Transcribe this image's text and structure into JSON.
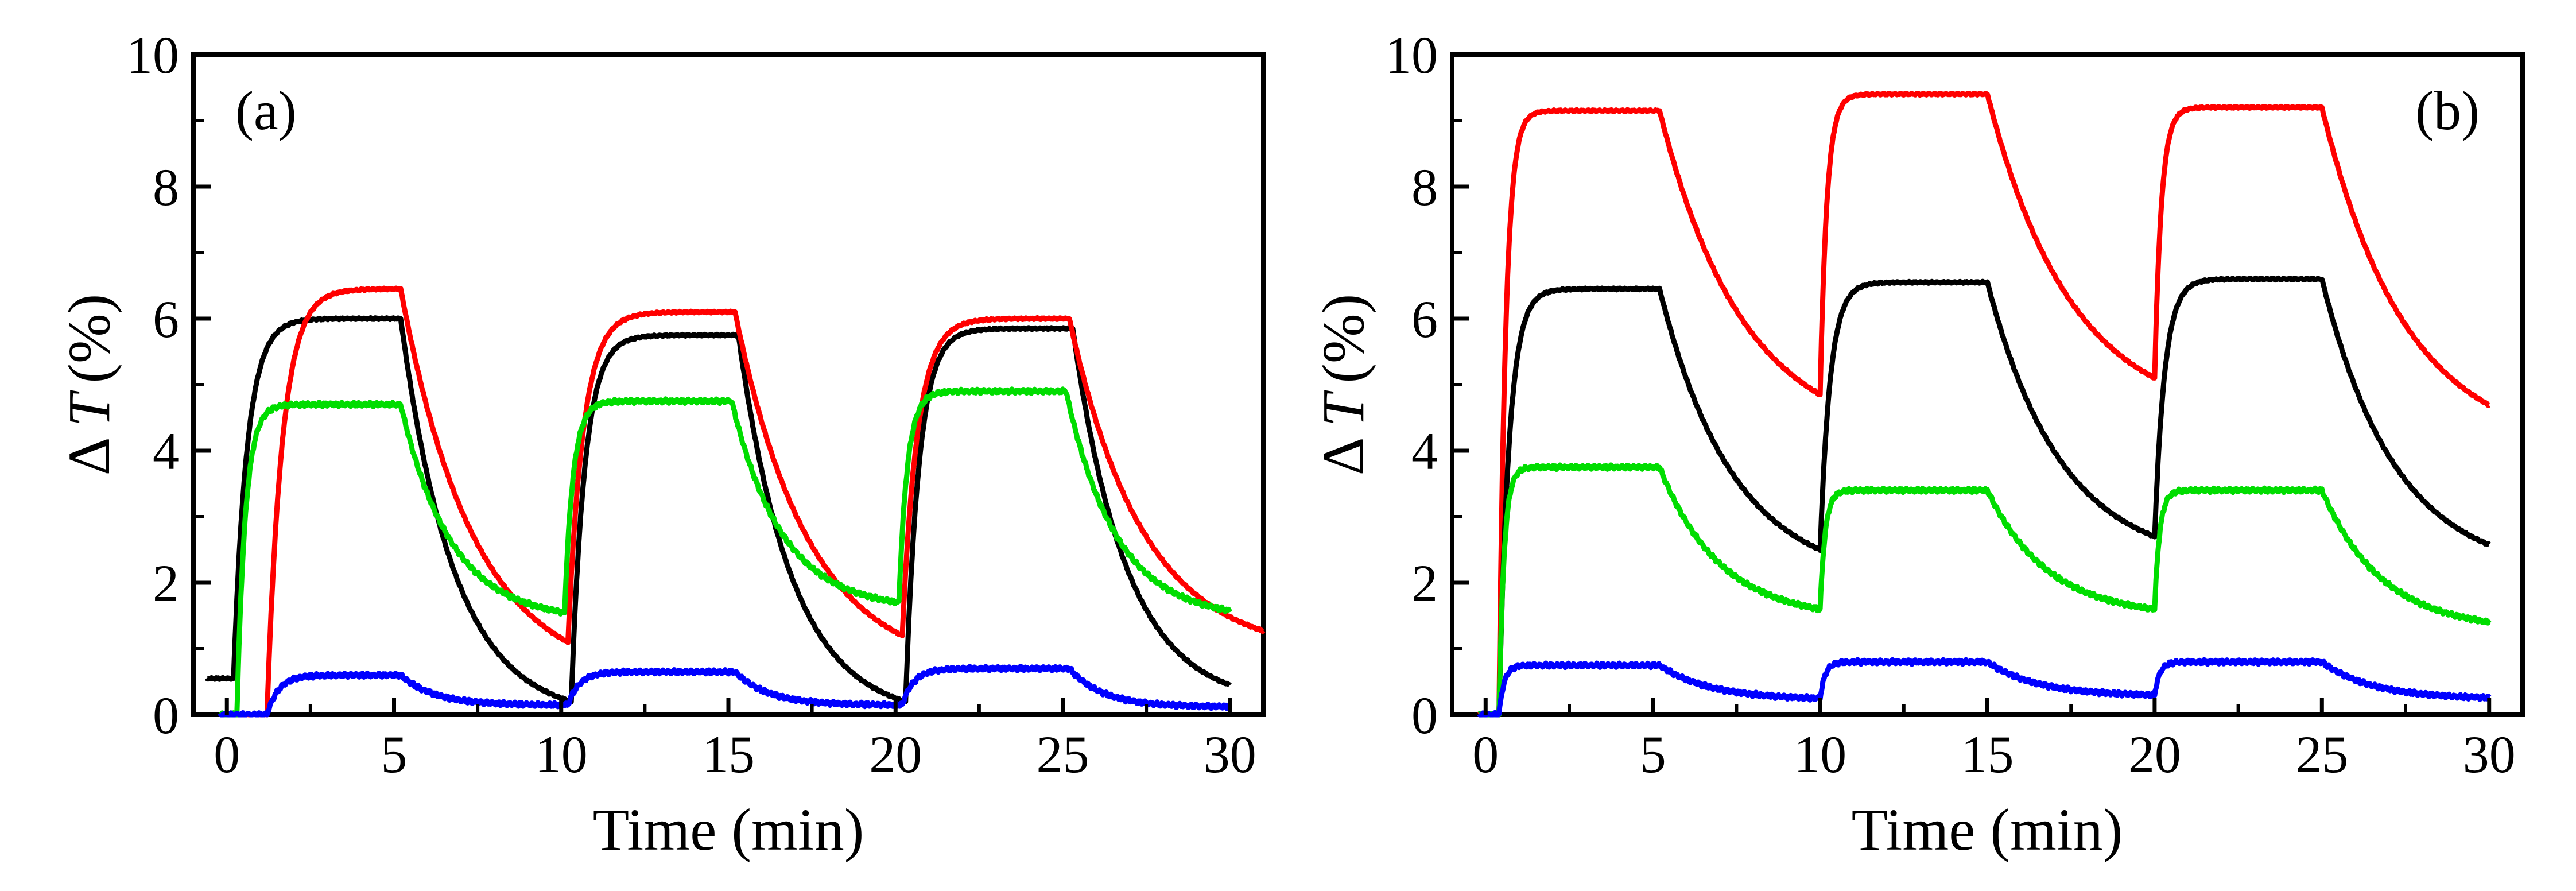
{
  "chart_data": [
    {
      "type": "line",
      "panel_label": "(a)",
      "xlabel": "Time (min)",
      "ylabel_prefix": "Δ",
      "ylabel_var": "T",
      "ylabel_unit": "(%)",
      "xlim": [
        -1,
        31
      ],
      "ylim": [
        0,
        10
      ],
      "xticks": [
        0,
        5,
        10,
        15,
        20,
        25,
        30
      ],
      "yticks": [
        0,
        2,
        4,
        6,
        8,
        10
      ],
      "series": [
        {
          "name": "black",
          "color": "#000000",
          "type": "step",
          "t_on": [
            0.2,
            10.3,
            20.3
          ],
          "levels": [
            6.0,
            5.75,
            5.85
          ],
          "bases": [
            0.55,
            0.2,
            0.2
          ],
          "tau_rise": 0.4,
          "tau_fall": 1.6,
          "t_end": 30.0
        },
        {
          "name": "red",
          "color": "#ff0000",
          "type": "step",
          "t_on": [
            1.2,
            10.2,
            20.2
          ],
          "levels": [
            6.45,
            6.1,
            6.0
          ],
          "bases": [
            0.0,
            1.1,
            1.2
          ],
          "tau_rise": 0.45,
          "tau_fall": 2.2,
          "t_end": 31.0
        },
        {
          "name": "green",
          "color": "#00dd00",
          "type": "step",
          "t_on": [
            0.3,
            10.1,
            20.1
          ],
          "levels": [
            4.7,
            4.75,
            4.9
          ],
          "bases": [
            0.0,
            1.55,
            1.7
          ],
          "tau_rise": 0.25,
          "tau_fall": 1.5,
          "floor": 1.45,
          "t_end": 30.0
        },
        {
          "name": "blue",
          "color": "#0000ff",
          "type": "step",
          "t_on": [
            1.2,
            10.2,
            20.2
          ],
          "levels": [
            0.6,
            0.65,
            0.7
          ],
          "bases": [
            0.0,
            0.15,
            0.15
          ],
          "tau_rise": 0.35,
          "tau_fall": 1.0,
          "t_end": 30.0
        }
      ]
    },
    {
      "type": "line",
      "panel_label": "(b)",
      "xlabel": "Time (min)",
      "ylabel_prefix": "Δ",
      "ylabel_var": "T",
      "ylabel_unit": "(%)",
      "xlim": [
        -1,
        31
      ],
      "ylim": [
        0,
        10
      ],
      "xticks": [
        0,
        5,
        10,
        15,
        20,
        25,
        30
      ],
      "yticks": [
        0,
        2,
        4,
        6,
        8,
        10
      ],
      "series": [
        {
          "name": "red",
          "color": "#ff0000",
          "type": "step",
          "t_on": [
            0.4,
            10.0,
            20.0
          ],
          "levels": [
            9.15,
            9.4,
            9.2
          ],
          "bases": [
            0.0,
            4.85,
            5.1
          ],
          "tau_rise": 0.2,
          "tau_fall": 2.5,
          "t_end": 30.0
        },
        {
          "name": "black",
          "color": "#000000",
          "type": "step",
          "t_on": [
            0.4,
            10.0,
            20.0
          ],
          "levels": [
            6.45,
            6.55,
            6.6
          ],
          "bases": [
            0.0,
            2.5,
            2.7
          ],
          "tau_rise": 0.3,
          "tau_fall": 2.2,
          "t_end": 30.0
        },
        {
          "name": "green",
          "color": "#00dd00",
          "type": "step",
          "t_on": [
            0.4,
            10.0,
            20.0
          ],
          "levels": [
            3.75,
            3.4,
            3.4
          ],
          "bases": [
            0.0,
            1.6,
            1.6
          ],
          "tau_rise": 0.15,
          "tau_fall": 1.8,
          "t_end": 30.0
        },
        {
          "name": "blue",
          "color": "#0000ff",
          "type": "step",
          "t_on": [
            0.4,
            10.0,
            20.0
          ],
          "levels": [
            0.75,
            0.8,
            0.8
          ],
          "bases": [
            0.0,
            0.25,
            0.3
          ],
          "tau_rise": 0.15,
          "tau_fall": 1.5,
          "t_end": 30.0
        }
      ]
    }
  ]
}
